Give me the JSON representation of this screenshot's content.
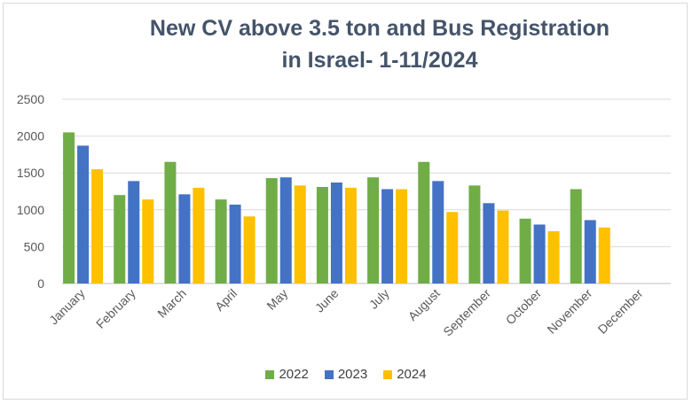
{
  "chart_data": {
    "type": "bar",
    "title_line1": "New CV above 3.5 ton and Bus Registration",
    "title_line2": "in Israel- 1-11/2024",
    "categories": [
      "January",
      "February",
      "March",
      "April",
      "May",
      "June",
      "July",
      "August",
      "September",
      "October",
      "November",
      "December"
    ],
    "series": [
      {
        "name": "2022",
        "color": "#70ad47",
        "values": [
          2050,
          1200,
          1650,
          1140,
          1430,
          1310,
          1440,
          1650,
          1330,
          880,
          1280,
          null
        ]
      },
      {
        "name": "2023",
        "color": "#4472c4",
        "values": [
          1870,
          1390,
          1210,
          1070,
          1440,
          1370,
          1280,
          1390,
          1090,
          800,
          860,
          null
        ]
      },
      {
        "name": "2024",
        "color": "#ffc000",
        "values": [
          1550,
          1140,
          1300,
          910,
          1330,
          1300,
          1280,
          970,
          990,
          710,
          760,
          null
        ]
      }
    ],
    "y_ticks": [
      "0",
      "500",
      "1000",
      "1500",
      "2000",
      "2500"
    ],
    "ylim": [
      0,
      2500
    ],
    "grid": true,
    "legend_position": "bottom"
  }
}
